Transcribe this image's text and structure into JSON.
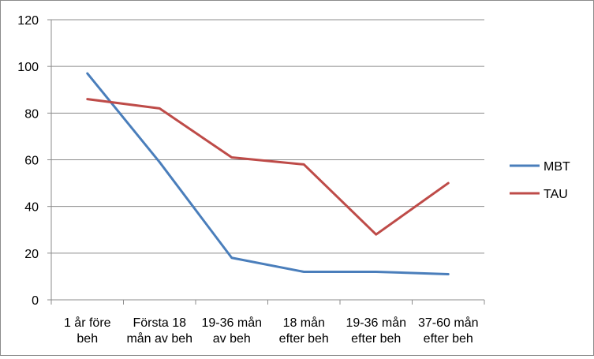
{
  "chart_data": {
    "type": "line",
    "categories": [
      [
        "1 år före",
        "beh"
      ],
      [
        "Första 18",
        "mån av beh"
      ],
      [
        "19-36 mån",
        "av beh"
      ],
      [
        "18 mån",
        "efter beh"
      ],
      [
        "19-36 mån",
        "efter beh"
      ],
      [
        "37-60 mån",
        "efter beh"
      ]
    ],
    "series": [
      {
        "name": "MBT",
        "color": "#4a7ebb",
        "values": [
          97,
          59,
          18,
          12,
          12,
          11
        ]
      },
      {
        "name": "TAU",
        "color": "#be4b48",
        "values": [
          86,
          82,
          61,
          58,
          28,
          50
        ]
      }
    ],
    "ylim": [
      0,
      120
    ],
    "yticks": [
      0,
      20,
      40,
      60,
      80,
      100,
      120
    ],
    "grid": true,
    "legend": "right",
    "title": "",
    "xlabel": "",
    "ylabel": ""
  }
}
